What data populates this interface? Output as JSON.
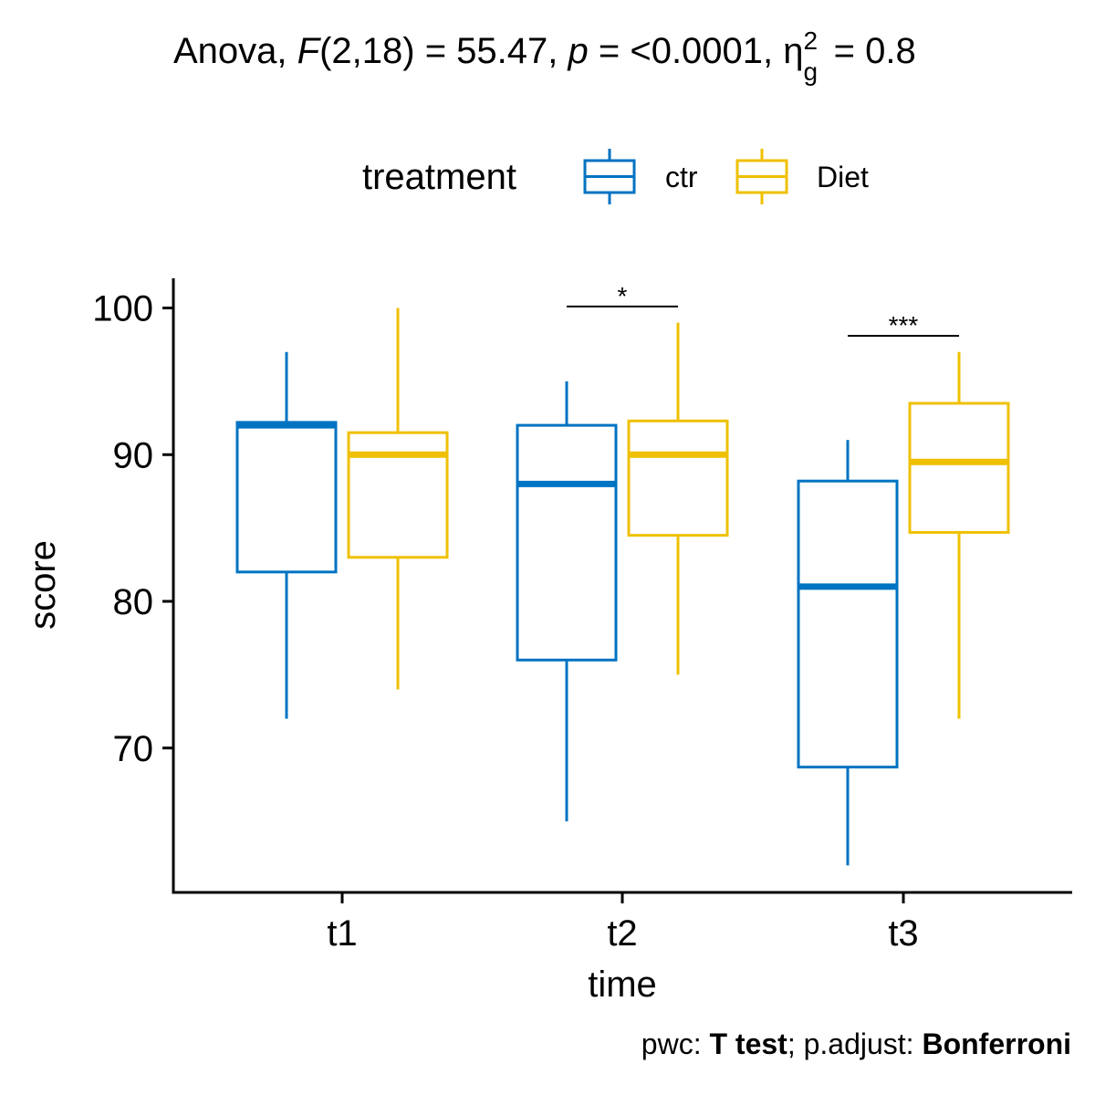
{
  "title": {
    "prefix": "Anova, ",
    "f_symbol": "F",
    "f_args": "(2,18) = 55.47, ",
    "p_symbol": "p",
    "p_value": " = <0.0001, ",
    "eta": "η",
    "eta_sub": "g",
    "eta_sup": "2",
    "eta_value": " = 0.8"
  },
  "legend": {
    "title": "treatment",
    "items": [
      {
        "label": "ctr",
        "color": "#0073C2"
      },
      {
        "label": "Diet",
        "color": "#EFC000"
      }
    ]
  },
  "caption": {
    "part1": "pwc: ",
    "part2": "T test",
    "part3": "; p.adjust: ",
    "part4": "Bonferroni"
  },
  "chart_data": {
    "type": "boxplot",
    "xlabel": "time",
    "ylabel": "score",
    "categories": [
      "t1",
      "t2",
      "t3"
    ],
    "yticks": [
      70,
      80,
      90,
      100
    ],
    "ylim": [
      60,
      102
    ],
    "series": [
      {
        "name": "ctr",
        "color": "#0073C2",
        "boxes": [
          {
            "min": 72,
            "q1": 82,
            "median": 92,
            "q3": 92.2,
            "max": 97
          },
          {
            "min": 65,
            "q1": 76,
            "median": 88,
            "q3": 92,
            "max": 95
          },
          {
            "min": 62,
            "q1": 68.7,
            "median": 81,
            "q3": 88.2,
            "max": 91
          }
        ]
      },
      {
        "name": "Diet",
        "color": "#EFC000",
        "boxes": [
          {
            "min": 74,
            "q1": 83,
            "median": 90,
            "q3": 91.5,
            "max": 100
          },
          {
            "min": 75,
            "q1": 84.5,
            "median": 90,
            "q3": 92.3,
            "max": 99
          },
          {
            "min": 72,
            "q1": 84.7,
            "median": 89.5,
            "q3": 93.5,
            "max": 97
          }
        ]
      }
    ],
    "significance": [
      {
        "category": "t2",
        "label": "*",
        "y": 100.1
      },
      {
        "category": "t3",
        "label": "***",
        "y": 98.1
      }
    ],
    "grid": false,
    "legend_position": "top"
  }
}
